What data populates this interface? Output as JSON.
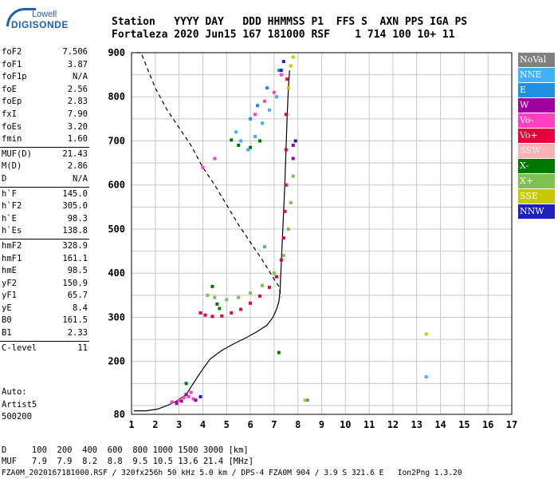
{
  "logo": {
    "line1": "Lowell",
    "line2": "DIGISONDE"
  },
  "header": {
    "labels": "Station   YYYY DAY   DDD HHMMSS P1  FFS S  AXN PPS IGA PS",
    "values": "Fortaleza 2020 Jun15 167 181000 RSF    1 714 100 10+ 11"
  },
  "parameters": [
    [
      {
        "name": "foF2",
        "value": "7.506"
      },
      {
        "name": "foF1",
        "value": "3.87"
      },
      {
        "name": "foF1p",
        "value": "N/A"
      },
      {
        "name": "foE",
        "value": "2.56"
      },
      {
        "name": "foEp",
        "value": "2.83"
      },
      {
        "name": "fxI",
        "value": "7.90"
      },
      {
        "name": "foEs",
        "value": "3.20"
      },
      {
        "name": "fmin",
        "value": "1.60"
      }
    ],
    [
      {
        "name": "MUF(D)",
        "value": "21.43"
      },
      {
        "name": "M(D)",
        "value": "2.86"
      },
      {
        "name": "D",
        "value": "N/A"
      }
    ],
    [
      {
        "name": "h`F",
        "value": "145.0"
      },
      {
        "name": "h`F2",
        "value": "305.0"
      },
      {
        "name": "h`E",
        "value": "98.3"
      },
      {
        "name": "h`Es",
        "value": "138.8"
      }
    ],
    [
      {
        "name": "hmF2",
        "value": "328.9"
      },
      {
        "name": "hmF1",
        "value": "161.1"
      },
      {
        "name": "hmE",
        "value": "98.5"
      },
      {
        "name": "yF2",
        "value": "150.9"
      },
      {
        "name": "yF1",
        "value": "65.7"
      },
      {
        "name": "yE",
        "value": "8.4"
      },
      {
        "name": "B0",
        "value": "161.5"
      },
      {
        "name": "B1",
        "value": "2.33"
      }
    ],
    [
      {
        "name": "C-level",
        "value": "11"
      }
    ]
  ],
  "auto": {
    "line1": "Auto:",
    "line2": "Artist5",
    "line3": "500200"
  },
  "footer": {
    "d_row": "D     100  200  400  600  800 1000 1500 3000 [km]",
    "muf_row": "MUF   7.9  7.9  8.2  8.8  9.5 10.5 13.6 21.4 [MHz]",
    "file_row": "FZA0M_2020167181000.RSF / 320fx256h 50 kHz 5.0 km / DPS-4 FZA0M 904 / 3.9 S 321.6 E   Ion2Png 1.3.20"
  },
  "legend": [
    {
      "label": "NoVal",
      "color": "#808080"
    },
    {
      "label": "NNE",
      "color": "#40b0ff"
    },
    {
      "label": "E",
      "color": "#2090e0"
    },
    {
      "label": "W",
      "color": "#a000a0"
    },
    {
      "label": "Vo-",
      "color": "#ff40c0"
    },
    {
      "label": "Vo+",
      "color": "#e8003c"
    },
    {
      "label": "SSW",
      "color": "#ffb0b0"
    },
    {
      "label": "X-",
      "color": "#007800"
    },
    {
      "label": "X+",
      "color": "#80c050"
    },
    {
      "label": "SSE",
      "color": "#c8c800"
    },
    {
      "label": "NNW",
      "color": "#2020c0"
    }
  ],
  "chart_data": {
    "type": "scatter",
    "xlim": [
      1,
      17
    ],
    "ylim": [
      80,
      900
    ],
    "x_ticks": [
      "1",
      "2",
      "3",
      "4",
      "5",
      "6",
      "7",
      "8",
      "9",
      "10",
      "11",
      "12",
      "13",
      "14",
      "15",
      "16",
      "17"
    ],
    "y_ticks": [
      "80",
      "200",
      "300",
      "400",
      "500",
      "600",
      "700",
      "800",
      "900"
    ],
    "grid": true,
    "series": [
      {
        "name": "Vo+",
        "color": "#e8003c",
        "points": [
          [
            3.9,
            310
          ],
          [
            4.1,
            305
          ],
          [
            4.4,
            302
          ],
          [
            4.8,
            303
          ],
          [
            5.2,
            310
          ],
          [
            5.6,
            318
          ],
          [
            6.0,
            332
          ],
          [
            6.4,
            348
          ],
          [
            6.8,
            368
          ],
          [
            7.1,
            392
          ],
          [
            7.3,
            430
          ],
          [
            7.4,
            480
          ],
          [
            7.45,
            540
          ],
          [
            7.5,
            600
          ],
          [
            7.5,
            680
          ],
          [
            7.5,
            760
          ],
          [
            7.55,
            840
          ]
        ]
      },
      {
        "name": "X+",
        "color": "#80c050",
        "points": [
          [
            4.2,
            350
          ],
          [
            4.5,
            345
          ],
          [
            5.0,
            340
          ],
          [
            5.5,
            345
          ],
          [
            6.0,
            355
          ],
          [
            6.5,
            372
          ],
          [
            7.0,
            400
          ],
          [
            7.4,
            440
          ],
          [
            7.6,
            500
          ],
          [
            7.7,
            560
          ],
          [
            7.8,
            620
          ],
          [
            7.9,
            700
          ]
        ]
      },
      {
        "name": "X-",
        "color": "#007800",
        "points": [
          [
            4.4,
            370
          ],
          [
            4.6,
            330
          ],
          [
            4.7,
            320
          ],
          [
            5.2,
            702
          ],
          [
            5.5,
            690
          ],
          [
            6.0,
            685
          ],
          [
            6.4,
            700
          ],
          [
            7.2,
            220
          ],
          [
            3.3,
            150
          ]
        ]
      },
      {
        "name": "Vo-",
        "color": "#ff40c0",
        "points": [
          [
            3.0,
            112
          ],
          [
            3.2,
            118
          ],
          [
            3.4,
            120
          ],
          [
            3.6,
            115
          ],
          [
            2.7,
            108
          ],
          [
            4.0,
            640
          ],
          [
            4.5,
            660
          ],
          [
            6.2,
            760
          ],
          [
            6.6,
            790
          ],
          [
            7.0,
            810
          ],
          [
            7.3,
            850
          ],
          [
            3.5,
            130
          ]
        ]
      },
      {
        "name": "W",
        "color": "#a000a0",
        "points": [
          [
            3.1,
            110
          ],
          [
            3.3,
            125
          ],
          [
            3.7,
            112
          ],
          [
            2.9,
            105
          ],
          [
            7.8,
            660
          ],
          [
            7.8,
            690
          ]
        ]
      },
      {
        "name": "NNE",
        "color": "#40b0ff",
        "points": [
          [
            5.4,
            720
          ],
          [
            5.6,
            700
          ],
          [
            5.9,
            680
          ],
          [
            6.2,
            710
          ],
          [
            6.5,
            740
          ],
          [
            6.8,
            770
          ],
          [
            7.1,
            800
          ],
          [
            6.6,
            460
          ],
          [
            13.4,
            165
          ]
        ]
      },
      {
        "name": "E",
        "color": "#2090e0",
        "points": [
          [
            6.0,
            750
          ],
          [
            6.3,
            780
          ],
          [
            6.7,
            820
          ],
          [
            7.2,
            860
          ],
          [
            8.4,
            112
          ]
        ]
      },
      {
        "name": "SSE",
        "color": "#c8c800",
        "points": [
          [
            7.6,
            820
          ],
          [
            7.7,
            870
          ],
          [
            7.8,
            890
          ],
          [
            13.4,
            262
          ],
          [
            8.3,
            112
          ]
        ]
      },
      {
        "name": "NNW",
        "color": "#2020c0",
        "points": [
          [
            7.3,
            860
          ],
          [
            7.4,
            880
          ],
          [
            7.9,
            700
          ],
          [
            3.9,
            120
          ]
        ]
      }
    ],
    "profile_solid": [
      [
        1.1,
        88
      ],
      [
        1.6,
        88
      ],
      [
        2.1,
        92
      ],
      [
        2.5,
        100
      ],
      [
        2.9,
        110
      ],
      [
        3.3,
        125
      ],
      [
        3.6,
        150
      ],
      [
        3.9,
        175
      ],
      [
        4.3,
        205
      ],
      [
        4.8,
        225
      ],
      [
        5.3,
        240
      ],
      [
        5.8,
        253
      ],
      [
        6.3,
        268
      ],
      [
        6.7,
        282
      ],
      [
        6.95,
        300
      ],
      [
        7.1,
        318
      ],
      [
        7.2,
        335
      ],
      [
        7.25,
        360
      ],
      [
        7.3,
        420
      ],
      [
        7.35,
        480
      ],
      [
        7.4,
        540
      ],
      [
        7.45,
        600
      ],
      [
        7.5,
        680
      ],
      [
        7.55,
        760
      ],
      [
        7.6,
        820
      ],
      [
        7.65,
        860
      ]
    ],
    "profile_dashed": [
      [
        1.2,
        900
      ],
      [
        1.4,
        900
      ],
      [
        2.0,
        820
      ],
      [
        2.5,
        770
      ],
      [
        3.0,
        730
      ],
      [
        3.5,
        690
      ],
      [
        4.0,
        640
      ],
      [
        4.5,
        600
      ],
      [
        5.0,
        555
      ],
      [
        5.5,
        510
      ],
      [
        6.0,
        470
      ],
      [
        6.5,
        430
      ],
      [
        6.9,
        395
      ],
      [
        7.2,
        370
      ],
      [
        7.3,
        345
      ]
    ]
  }
}
